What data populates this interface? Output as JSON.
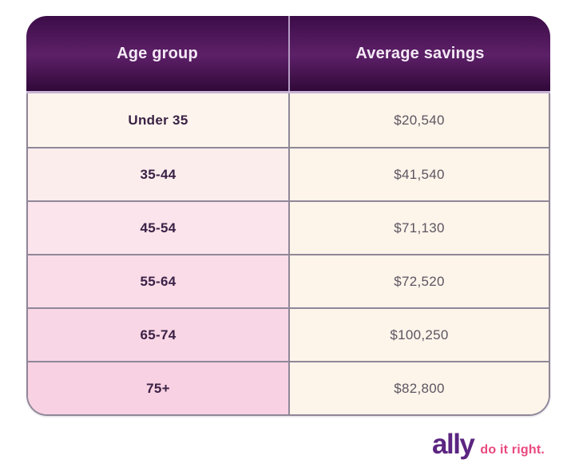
{
  "chart_data": {
    "type": "table",
    "title": "",
    "columns": [
      "Age group",
      "Average savings"
    ],
    "rows": [
      [
        "Under 35",
        20540
      ],
      [
        "35-44",
        41540
      ],
      [
        "45-54",
        71130
      ],
      [
        "55-64",
        72520
      ],
      [
        "65-74",
        100250
      ],
      [
        "75+",
        82800
      ]
    ]
  },
  "table": {
    "headers": [
      "Age group",
      "Average savings"
    ],
    "rows": [
      {
        "age": "Under 35",
        "savings": "$20,540"
      },
      {
        "age": "35-44",
        "savings": "$41,540"
      },
      {
        "age": "45-54",
        "savings": "$71,130"
      },
      {
        "age": "55-64",
        "savings": "$72,520"
      },
      {
        "age": "65-74",
        "savings": "$100,250"
      },
      {
        "age": "75+",
        "savings": "$82,800"
      }
    ],
    "row_left_colors": [
      "#fdf5ed",
      "#fceded",
      "#fbe4eb",
      "#fadce8",
      "#f9d6e5",
      "#f8d1e2"
    ],
    "right_column_color": "#fdf4ea"
  },
  "colors": {
    "header_gradient_top": "#3c0c48",
    "header_gradient_mid": "#5d2068",
    "header_gradient_bottom": "#310939",
    "header_text": "#f4eaf6",
    "header_divider": "#b49cc4",
    "header_underline": "#c9b4d6",
    "grid_line": "#8f8798",
    "age_text": "#3a2145",
    "savings_text": "#5b5560",
    "logo_purple": "#5b2581",
    "logo_pink": "#e9487f"
  },
  "logo": {
    "brand": "ally",
    "tagline": "do it right."
  }
}
